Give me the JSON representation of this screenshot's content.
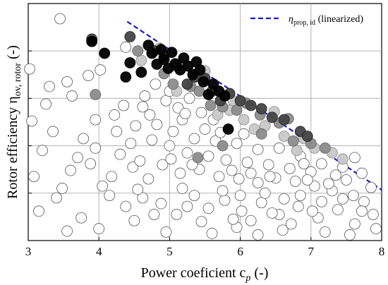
{
  "chart_data": {
    "type": "scatter",
    "xlabel": "Power coeficient c",
    "xlabel_sub": "p",
    "xlabel_unit": " (-)",
    "ylabel": "Rotor efficiency η",
    "ylabel_sub": "ov, rotor",
    "ylabel_unit": " (-)",
    "xlim": [
      3,
      8
    ],
    "ylim": [
      0,
      5
    ],
    "x_ticks": [
      3,
      4,
      5,
      6,
      7,
      8
    ],
    "x_tick_labels": [
      "3",
      "4",
      "5",
      "6",
      "7",
      "8"
    ],
    "y_ticks": [
      1,
      2,
      3,
      4,
      5
    ],
    "y_tick_labels": [],
    "grid": true,
    "legend_position": "top-right",
    "reference_line": {
      "name": "η",
      "name_sub": "prop, id",
      "name_suffix": " (linearized)",
      "color": "#1a1acc",
      "style": "dashed",
      "x": [
        4.4,
        8.0
      ],
      "y": [
        4.62,
        1.07
      ]
    },
    "series": [
      {
        "fill": "#000000",
        "stroke": "#000000",
        "points": [
          [
            3.9,
            4.2
          ],
          [
            4.08,
            3.95
          ],
          [
            4.38,
            3.45
          ],
          [
            4.44,
            3.75
          ],
          [
            4.6,
            3.55
          ],
          [
            4.7,
            4.12
          ],
          [
            4.75,
            3.95
          ],
          [
            4.82,
            3.72
          ],
          [
            4.88,
            4.03
          ],
          [
            4.92,
            3.82
          ],
          [
            4.98,
            3.63
          ],
          [
            5.03,
            3.97
          ],
          [
            5.08,
            3.73
          ],
          [
            5.15,
            3.6
          ],
          [
            5.2,
            3.85
          ],
          [
            5.26,
            3.68
          ],
          [
            5.33,
            3.5
          ],
          [
            5.38,
            3.77
          ],
          [
            5.43,
            3.6
          ],
          [
            5.48,
            3.35
          ],
          [
            5.55,
            3.08
          ],
          [
            5.62,
            3.3
          ],
          [
            5.7,
            3.15
          ],
          [
            5.78,
            3.05
          ],
          [
            5.83,
            2.35
          ]
        ]
      },
      {
        "fill": "#444444",
        "stroke": "#222222",
        "points": [
          [
            3.9,
            4.25
          ],
          [
            4.44,
            4.3
          ],
          [
            4.78,
            4.0
          ],
          [
            4.92,
            3.88
          ],
          [
            5.1,
            3.68
          ],
          [
            5.25,
            3.3
          ],
          [
            5.36,
            3.45
          ],
          [
            5.5,
            3.42
          ],
          [
            5.6,
            3.15
          ],
          [
            5.72,
            2.95
          ],
          [
            5.85,
            3.1
          ],
          [
            6.0,
            2.95
          ],
          [
            6.15,
            2.85
          ],
          [
            6.3,
            2.78
          ],
          [
            6.45,
            2.6
          ],
          [
            6.62,
            2.55
          ],
          [
            6.85,
            2.3
          ],
          [
            6.95,
            2.2
          ]
        ]
      },
      {
        "fill": "#8c8c8c",
        "stroke": "#666666",
        "points": [
          [
            3.95,
            3.08
          ],
          [
            4.55,
            4.0
          ],
          [
            4.92,
            3.52
          ],
          [
            5.05,
            3.3
          ],
          [
            5.3,
            3.25
          ],
          [
            5.42,
            3.15
          ],
          [
            5.58,
            2.85
          ],
          [
            5.75,
            2.82
          ],
          [
            5.95,
            2.75
          ],
          [
            6.08,
            2.9
          ],
          [
            6.28,
            2.65
          ],
          [
            6.55,
            2.48
          ],
          [
            6.68,
            2.57
          ],
          [
            6.75,
            2.1
          ],
          [
            7.0,
            2.05
          ],
          [
            7.2,
            1.95
          ],
          [
            5.4,
            1.75
          ],
          [
            6.3,
            2.25
          ],
          [
            5.75,
            2.0
          ]
        ]
      },
      {
        "fill": "#c8c8c8",
        "stroke": "#888888",
        "points": [
          [
            4.85,
            4.05
          ],
          [
            5.15,
            3.7
          ],
          [
            5.5,
            3.58
          ],
          [
            5.9,
            2.95
          ],
          [
            6.05,
            2.55
          ],
          [
            6.2,
            2.35
          ],
          [
            6.48,
            2.72
          ],
          [
            6.62,
            2.2
          ],
          [
            6.9,
            2.15
          ],
          [
            7.05,
            1.95
          ],
          [
            5.1,
            3.15
          ],
          [
            5.68,
            2.65
          ],
          [
            6.35,
            2.42
          ],
          [
            7.3,
            1.85
          ],
          [
            7.45,
            1.72
          ],
          [
            5.85,
            2.75
          ],
          [
            4.6,
            3.8
          ],
          [
            6.8,
            1.9
          ]
        ]
      },
      {
        "fill": "#ffffff",
        "stroke": "#555555",
        "points": [
          [
            3.45,
            4.68
          ],
          [
            3.02,
            3.62
          ],
          [
            3.85,
            3.48
          ],
          [
            4.38,
            4.08
          ],
          [
            4.8,
            3.3
          ],
          [
            4.95,
            2.95
          ],
          [
            5.12,
            2.8
          ],
          [
            5.28,
            3.0
          ],
          [
            5.45,
            2.7
          ],
          [
            5.62,
            2.55
          ],
          [
            4.02,
            3.6
          ],
          [
            3.62,
            3.05
          ],
          [
            3.25,
            2.88
          ],
          [
            3.05,
            2.52
          ],
          [
            3.35,
            2.3
          ],
          [
            3.95,
            2.55
          ],
          [
            4.22,
            2.65
          ],
          [
            4.62,
            2.82
          ],
          [
            4.82,
            2.45
          ],
          [
            5.05,
            2.3
          ],
          [
            5.35,
            2.15
          ],
          [
            5.65,
            2.1
          ],
          [
            5.95,
            2.05
          ],
          [
            6.25,
            1.92
          ],
          [
            6.55,
            1.95
          ],
          [
            6.85,
            1.78
          ],
          [
            7.15,
            1.62
          ],
          [
            7.45,
            1.55
          ],
          [
            7.72,
            1.42
          ],
          [
            4.45,
            2.05
          ],
          [
            4.75,
            2.12
          ],
          [
            5.0,
            2.0
          ],
          [
            5.25,
            1.85
          ],
          [
            5.55,
            1.78
          ],
          [
            5.8,
            1.7
          ],
          [
            6.1,
            1.65
          ],
          [
            6.4,
            1.6
          ],
          [
            6.7,
            1.52
          ],
          [
            7.0,
            1.45
          ],
          [
            7.35,
            1.38
          ],
          [
            3.08,
            1.35
          ],
          [
            3.48,
            1.1
          ],
          [
            3.88,
            1.62
          ],
          [
            4.18,
            1.35
          ],
          [
            4.48,
            1.55
          ],
          [
            4.7,
            1.3
          ],
          [
            4.9,
            1.6
          ],
          [
            5.15,
            1.42
          ],
          [
            5.42,
            1.5
          ],
          [
            5.7,
            1.35
          ],
          [
            5.98,
            1.3
          ],
          [
            6.25,
            1.22
          ],
          [
            6.5,
            1.32
          ],
          [
            6.78,
            1.25
          ],
          [
            7.05,
            1.15
          ],
          [
            7.3,
            1.05
          ],
          [
            7.6,
            0.95
          ],
          [
            7.85,
            1.12
          ],
          [
            3.15,
            0.62
          ],
          [
            3.4,
            0.9
          ],
          [
            3.75,
            0.48
          ],
          [
            4.15,
            0.95
          ],
          [
            4.38,
            0.72
          ],
          [
            4.62,
            0.9
          ],
          [
            4.88,
            0.78
          ],
          [
            5.1,
            0.55
          ],
          [
            5.35,
            0.95
          ],
          [
            5.55,
            0.68
          ],
          [
            5.78,
            0.85
          ],
          [
            6.02,
            0.62
          ],
          [
            6.3,
            0.8
          ],
          [
            6.55,
            0.55
          ],
          [
            6.82,
            0.72
          ],
          [
            7.1,
            0.48
          ],
          [
            7.38,
            0.65
          ],
          [
            7.62,
            0.35
          ],
          [
            7.88,
            0.55
          ],
          [
            5.95,
            0.28
          ],
          [
            6.6,
            0.22
          ],
          [
            7.2,
            0.18
          ],
          [
            4.0,
            0.25
          ],
          [
            4.95,
            0.18
          ],
          [
            5.6,
            0.15
          ],
          [
            6.25,
            0.12
          ],
          [
            7.55,
            0.12
          ],
          [
            3.2,
            1.9
          ],
          [
            3.7,
            1.75
          ],
          [
            4.3,
            1.82
          ],
          [
            4.58,
            1.68
          ],
          [
            5.02,
            1.72
          ],
          [
            5.32,
            1.6
          ],
          [
            5.88,
            1.48
          ],
          [
            6.15,
            1.42
          ],
          [
            6.42,
            1.35
          ],
          [
            6.95,
            1.28
          ],
          [
            7.25,
            1.2
          ],
          [
            7.5,
            1.28
          ],
          [
            7.75,
            0.82
          ],
          [
            6.85,
            0.95
          ],
          [
            5.18,
            1.1
          ],
          [
            4.55,
            1.08
          ],
          [
            3.6,
            1.48
          ],
          [
            3.95,
            1.95
          ],
          [
            4.25,
            2.3
          ],
          [
            4.52,
            2.42
          ],
          [
            4.72,
            2.65
          ],
          [
            5.18,
            2.55
          ],
          [
            5.5,
            2.35
          ],
          [
            5.72,
            2.28
          ],
          [
            6.05,
            2.25
          ],
          [
            3.3,
            3.25
          ],
          [
            3.55,
            3.35
          ],
          [
            4.65,
            3.05
          ],
          [
            5.0,
            3.15
          ],
          [
            5.22,
            2.68
          ],
          [
            4.35,
            2.85
          ],
          [
            3.78,
            2.15
          ],
          [
            6.9,
            1.62
          ],
          [
            7.62,
            1.75
          ],
          [
            5.45,
            0.4
          ],
          [
            6.15,
            0.42
          ],
          [
            6.72,
            0.35
          ],
          [
            4.5,
            0.42
          ],
          [
            3.55,
            0.2
          ],
          [
            7.92,
            0.25
          ],
          [
            5.75,
            1.05
          ],
          [
            6.0,
            0.95
          ],
          [
            6.35,
            1.0
          ],
          [
            6.62,
            0.88
          ],
          [
            7.15,
            0.82
          ],
          [
            7.45,
            0.88
          ],
          [
            4.05,
            1.15
          ],
          [
            4.78,
            0.55
          ],
          [
            5.25,
            0.72
          ],
          [
            5.9,
            0.45
          ],
          [
            6.45,
            0.58
          ],
          [
            7.02,
            0.62
          ],
          [
            7.72,
            0.62
          ]
        ]
      }
    ]
  }
}
